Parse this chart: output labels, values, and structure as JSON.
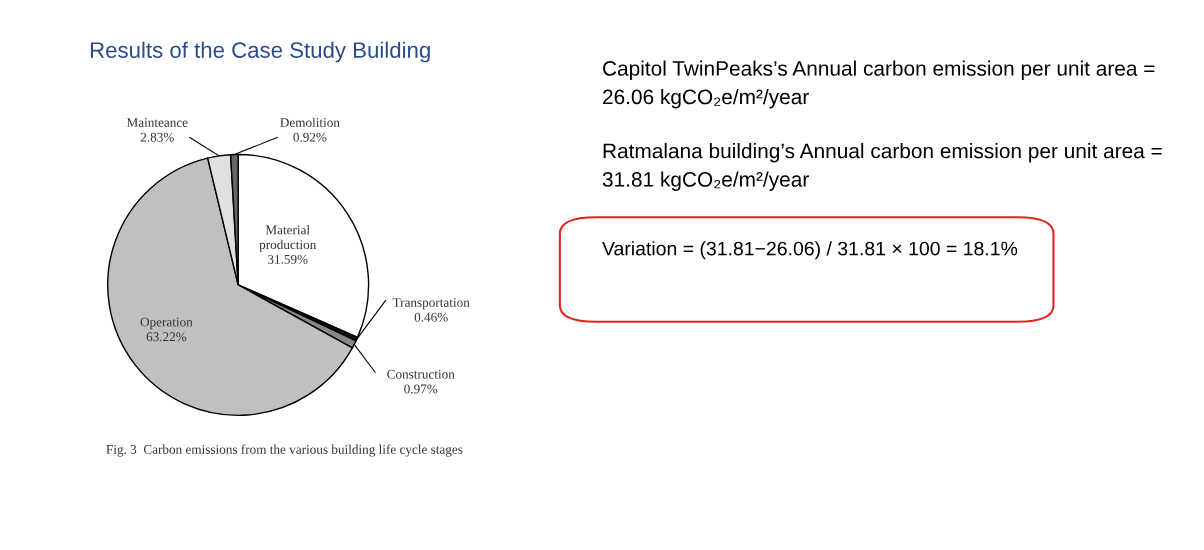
{
  "chart_data": {
    "type": "pie",
    "title": "Results of the Case Study Building",
    "categories": [
      "Material production",
      "Transportation",
      "Construction",
      "Operation",
      "Mainteance",
      "Demolition"
    ],
    "values": [
      31.59,
      0.46,
      0.97,
      63.22,
      2.83,
      0.92
    ],
    "value_labels": [
      "31.59%",
      "0.46%",
      "0.97%",
      "63.22%",
      "2.83%",
      "0.92%"
    ],
    "colors": [
      "#ffffff",
      "#111111",
      "#888888",
      "#c0c0c0",
      "#e0e0e0",
      "#666666"
    ],
    "annotations": [
      "Fig. 3  Carbon emissions from the various building life cycle stages",
      "Capitol TwinPeaks’s Annual carbon emission per unit area = 26.06 kgCO₂e/m²/year",
      "Ratmalana building’s Annual carbon emission per unit area = 31.81 kgCO₂e/m²/year",
      "Variation = (31.81−26.06) / 31.81 × 100 = 18.1%"
    ]
  }
}
